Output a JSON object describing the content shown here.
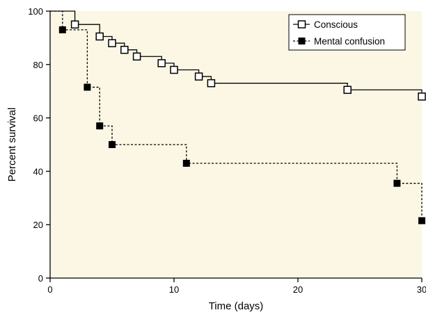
{
  "chart_data": {
    "type": "line",
    "subtype": "kaplan-meier step",
    "title": "",
    "xlabel": "Time (days)",
    "ylabel": "Percent survival",
    "xlim": [
      0,
      30
    ],
    "ylim": [
      0,
      100
    ],
    "xticks": [
      0,
      10,
      20,
      30
    ],
    "yticks": [
      0,
      20,
      40,
      60,
      80,
      100
    ],
    "grid": false,
    "legend": {
      "position": "top-right"
    },
    "background_color": "#fbf7e4",
    "series": [
      {
        "name": "Conscious",
        "line_style": "solid",
        "marker": "open-square",
        "color": "#000000",
        "steps": [
          [
            0,
            100
          ],
          [
            2,
            95
          ],
          [
            4,
            90.5
          ],
          [
            5,
            88
          ],
          [
            6,
            85.5
          ],
          [
            7,
            83
          ],
          [
            9,
            80.5
          ],
          [
            10,
            78
          ],
          [
            12,
            75.5
          ],
          [
            13,
            73
          ],
          [
            24,
            70.5
          ],
          [
            30,
            68
          ]
        ],
        "markers": [
          [
            2,
            95
          ],
          [
            4,
            90.5
          ],
          [
            5,
            88
          ],
          [
            6,
            85.5
          ],
          [
            7,
            83
          ],
          [
            9,
            80.5
          ],
          [
            10,
            78
          ],
          [
            12,
            75.5
          ],
          [
            13,
            73
          ],
          [
            24,
            70.5
          ],
          [
            30,
            68
          ]
        ]
      },
      {
        "name": "Mental confusion",
        "line_style": "dashed",
        "marker": "filled-square",
        "color": "#000000",
        "steps": [
          [
            0,
            100
          ],
          [
            1,
            93
          ],
          [
            3,
            71.5
          ],
          [
            4,
            57
          ],
          [
            5,
            50
          ],
          [
            11,
            43
          ],
          [
            28,
            35.5
          ],
          [
            30,
            21.5
          ]
        ],
        "markers": [
          [
            1,
            93
          ],
          [
            3,
            71.5
          ],
          [
            4,
            57
          ],
          [
            5,
            50
          ],
          [
            11,
            43
          ],
          [
            28,
            35.5
          ],
          [
            30,
            21.5
          ]
        ]
      }
    ]
  }
}
